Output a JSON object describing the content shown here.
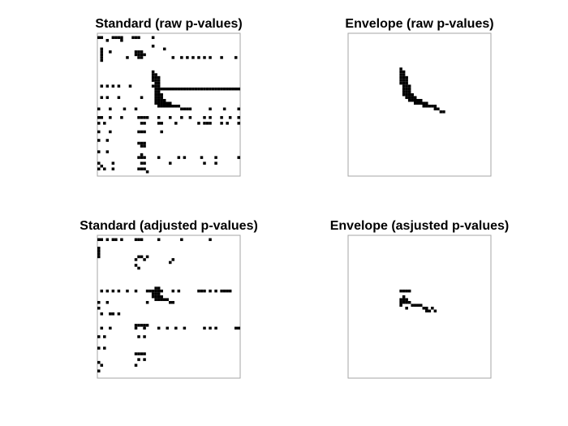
{
  "chart_data": [
    {
      "type": "spy",
      "title": "Standard (raw p-values)",
      "color": "#000000",
      "xlim": [
        0.5,
        50.5
      ],
      "ylim": [
        50.5,
        0.5
      ],
      "x": [
        1,
        2,
        6,
        7,
        8,
        9,
        13,
        14,
        15,
        20,
        4,
        9,
        20,
        24,
        2,
        2,
        2,
        2,
        2,
        5,
        14,
        15,
        16,
        14,
        15,
        16,
        17,
        15,
        16,
        30,
        32,
        34,
        36,
        38,
        40,
        44,
        49,
        11,
        27,
        20,
        20,
        21,
        20,
        21,
        22,
        20,
        21,
        22,
        21,
        22,
        2,
        4,
        6,
        8,
        12,
        20,
        21,
        22,
        21,
        22,
        23,
        24,
        25,
        26,
        27,
        28,
        29,
        30,
        31,
        32,
        33,
        34,
        35,
        36,
        37,
        38,
        39,
        40,
        41,
        42,
        43,
        44,
        45,
        46,
        47,
        48,
        49,
        50,
        21,
        22,
        21,
        22,
        23,
        2,
        4,
        8,
        16,
        21,
        22,
        23,
        21,
        22,
        23,
        24,
        21,
        22,
        23,
        24,
        25,
        26,
        22,
        23,
        24,
        25,
        26,
        27,
        28,
        29,
        30,
        31,
        32,
        33,
        1,
        5,
        10,
        14,
        40,
        45,
        50,
        1,
        2,
        5,
        9,
        15,
        16,
        17,
        18,
        22,
        26,
        30,
        33,
        38,
        40,
        44,
        47,
        50,
        1,
        3,
        16,
        17,
        22,
        23,
        28,
        36,
        38,
        39,
        40,
        44,
        46,
        50,
        1,
        5,
        15,
        16,
        17,
        23,
        1,
        4,
        15,
        16,
        17,
        16,
        17,
        1,
        4,
        15,
        16,
        17,
        22,
        29,
        31,
        37,
        42,
        50,
        1,
        6,
        16,
        17,
        1,
        3,
        6,
        15,
        16,
        17,
        18,
        2,
        42,
        38,
        26,
        16
      ],
      "y": [
        2,
        2,
        2,
        2,
        2,
        2,
        2,
        2,
        2,
        2,
        3,
        3,
        5,
        6,
        6,
        7,
        8,
        9,
        10,
        7,
        7,
        7,
        7,
        8,
        8,
        8,
        8,
        9,
        9,
        9,
        9,
        9,
        9,
        9,
        9,
        9,
        9,
        9,
        9,
        14,
        15,
        15,
        16,
        16,
        16,
        17,
        17,
        17,
        18,
        18,
        19,
        19,
        19,
        19,
        19,
        19,
        19,
        19,
        20,
        20,
        20,
        20,
        20,
        20,
        20,
        20,
        20,
        20,
        20,
        20,
        20,
        20,
        20,
        20,
        20,
        20,
        20,
        20,
        20,
        20,
        20,
        20,
        20,
        20,
        20,
        20,
        20,
        20,
        21,
        21,
        22,
        22,
        22,
        23,
        23,
        23,
        23,
        23,
        23,
        23,
        24,
        24,
        24,
        24,
        25,
        25,
        25,
        25,
        25,
        25,
        26,
        26,
        26,
        26,
        26,
        26,
        26,
        26,
        27,
        27,
        27,
        27,
        27,
        27,
        27,
        27,
        27,
        27,
        27,
        30,
        30,
        30,
        30,
        30,
        30,
        30,
        30,
        30,
        30,
        30,
        30,
        30,
        30,
        30,
        30,
        30,
        32,
        32,
        32,
        32,
        32,
        32,
        32,
        32,
        32,
        32,
        32,
        32,
        32,
        32,
        35,
        35,
        35,
        35,
        35,
        35,
        38,
        38,
        39,
        39,
        39,
        40,
        40,
        42,
        42,
        44,
        44,
        44,
        44,
        44,
        44,
        44,
        44,
        44,
        46,
        46,
        46,
        46,
        48,
        48,
        48,
        48,
        48,
        48,
        49,
        47,
        46,
        46,
        46,
        43
      ]
    },
    {
      "type": "spy",
      "title": "Envelope (raw p-values)",
      "color": "#000000",
      "xlim": [
        0.5,
        50.5
      ],
      "ylim": [
        50.5,
        0.5
      ],
      "x": [
        19,
        19,
        20,
        19,
        20,
        19,
        20,
        21,
        19,
        20,
        21,
        20,
        21,
        20,
        21,
        22,
        20,
        21,
        22,
        20,
        21,
        22,
        20,
        21,
        22,
        23,
        21,
        22,
        23,
        24,
        22,
        23,
        24,
        25,
        26,
        24,
        25,
        26,
        27,
        28,
        27,
        28,
        29,
        30,
        31,
        31,
        32,
        33,
        34,
        19
      ],
      "y": [
        13,
        14,
        14,
        15,
        15,
        16,
        16,
        16,
        17,
        17,
        17,
        18,
        18,
        19,
        19,
        19,
        20,
        20,
        20,
        21,
        21,
        21,
        22,
        22,
        22,
        22,
        23,
        23,
        23,
        23,
        24,
        24,
        24,
        24,
        24,
        25,
        25,
        25,
        25,
        25,
        26,
        26,
        26,
        26,
        26,
        27,
        27,
        28,
        28,
        18
      ]
    },
    {
      "type": "spy",
      "title": "Standard (adjusted p-values)",
      "color": "#000000",
      "xlim": [
        0.5,
        50.5
      ],
      "ylim": [
        50.5,
        0.5
      ],
      "x": [
        1,
        2,
        4,
        6,
        7,
        9,
        14,
        15,
        16,
        22,
        30,
        40,
        1,
        1,
        1,
        1,
        15,
        16,
        18,
        14,
        17,
        27,
        26,
        14,
        15,
        2,
        4,
        6,
        8,
        11,
        14,
        18,
        19,
        20,
        21,
        22,
        23,
        27,
        29,
        36,
        37,
        38,
        40,
        42,
        44,
        45,
        46,
        47,
        21,
        22,
        20,
        21,
        22,
        20,
        21,
        22,
        23,
        21,
        22,
        23,
        24,
        25,
        26,
        27,
        18,
        1,
        4,
        1,
        2,
        5,
        6,
        8,
        14,
        15,
        16,
        17,
        18,
        2,
        5,
        14,
        17,
        22,
        25,
        28,
        31,
        38,
        40,
        42,
        49,
        50,
        1,
        3,
        15,
        17,
        1,
        3,
        14,
        15,
        16,
        17,
        15,
        1,
        2,
        14,
        1,
        17
      ],
      "y": [
        2,
        2,
        2,
        2,
        2,
        2,
        2,
        2,
        2,
        2,
        2,
        2,
        5,
        6,
        7,
        8,
        8,
        8,
        8,
        9,
        9,
        9,
        10,
        11,
        12,
        20,
        20,
        20,
        20,
        20,
        20,
        20,
        20,
        20,
        20,
        20,
        20,
        20,
        20,
        20,
        20,
        20,
        20,
        20,
        20,
        20,
        20,
        20,
        19,
        19,
        21,
        21,
        21,
        22,
        22,
        22,
        22,
        23,
        23,
        23,
        23,
        23,
        24,
        24,
        24,
        24,
        24,
        26,
        28,
        28,
        28,
        28,
        32,
        32,
        32,
        32,
        32,
        33,
        33,
        33,
        33,
        33,
        33,
        33,
        33,
        33,
        33,
        33,
        33,
        33,
        36,
        36,
        36,
        36,
        40,
        40,
        42,
        42,
        42,
        42,
        44,
        45,
        46,
        46,
        48,
        44
      ]
    },
    {
      "type": "spy",
      "title": "Envelope (asjusted p-values)",
      "color": "#000000",
      "xlim": [
        0.5,
        50.5
      ],
      "ylim": [
        50.5,
        0.5
      ],
      "x": [
        19,
        20,
        21,
        22,
        20,
        19,
        20,
        21,
        19,
        20,
        21,
        22,
        23,
        24,
        25,
        26,
        27,
        28,
        30,
        31,
        19,
        21,
        29,
        28
      ],
      "y": [
        20,
        20,
        20,
        20,
        22,
        23,
        23,
        23,
        24,
        24,
        24,
        24,
        25,
        25,
        25,
        25,
        26,
        26,
        26,
        27,
        25,
        26,
        27,
        27
      ]
    }
  ]
}
